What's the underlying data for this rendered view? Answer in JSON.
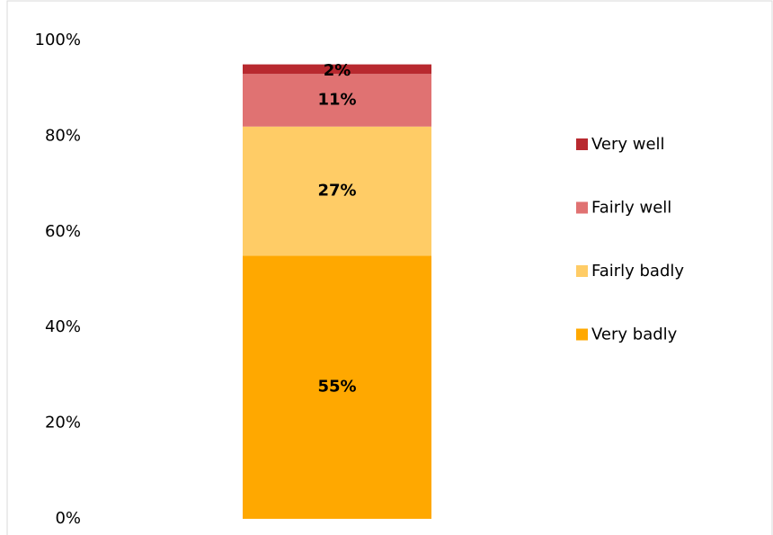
{
  "chart_data": {
    "type": "stacked_bar",
    "categories": [
      null
    ],
    "series": [
      {
        "name": "Very badly",
        "color": "#ffa800",
        "values": [
          55
        ],
        "value_labels": [
          "55%"
        ]
      },
      {
        "name": "Fairly badly",
        "color": "#ffcc66",
        "values": [
          27
        ],
        "value_labels": [
          "27%"
        ]
      },
      {
        "name": "Fairly well",
        "color": "#e07272",
        "values": [
          11
        ],
        "value_labels": [
          "11%"
        ]
      },
      {
        "name": "Very well",
        "color": "#b8292f",
        "values": [
          2
        ],
        "value_labels": [
          "2%"
        ]
      }
    ],
    "ylim": [
      0,
      100
    ],
    "yticks": [
      {
        "value": 0,
        "label": "0%"
      },
      {
        "value": 20,
        "label": "20%"
      },
      {
        "value": 40,
        "label": "40%"
      },
      {
        "value": 60,
        "label": "60%"
      },
      {
        "value": 80,
        "label": "80%"
      },
      {
        "value": 100,
        "label": "100%"
      }
    ],
    "grid": false,
    "legend": "right"
  }
}
